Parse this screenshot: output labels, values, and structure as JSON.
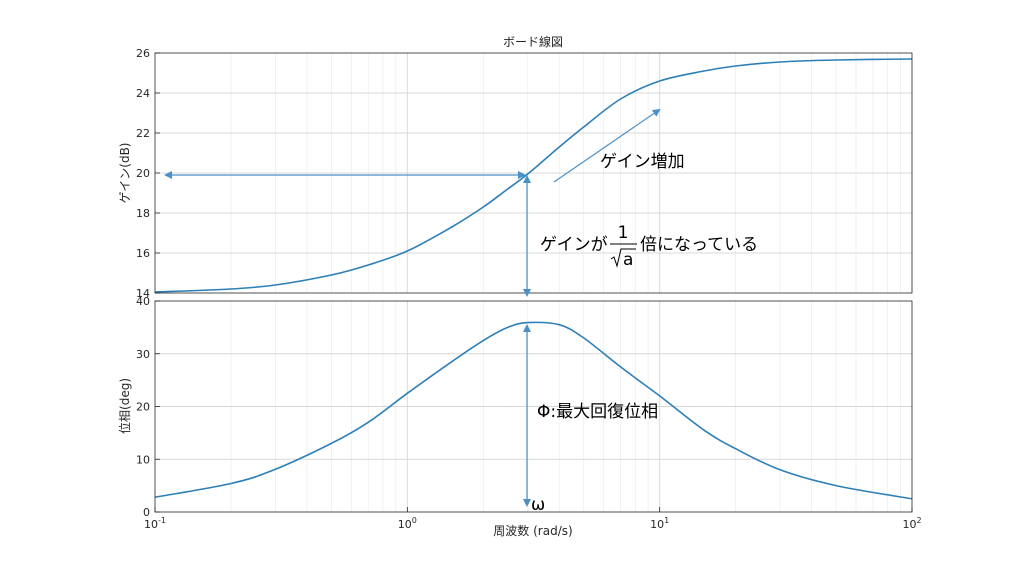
{
  "chart_data": [
    {
      "type": "line",
      "title": "ボード線図",
      "ylabel": "ゲイン(dB)",
      "xscale": "log",
      "xlim": [
        0.1,
        100
      ],
      "ylim": [
        14,
        26
      ],
      "yticks": [
        14,
        16,
        18,
        20,
        22,
        24,
        26
      ],
      "grid": true,
      "series": [
        {
          "color": "#2c7fb8",
          "x": [
            0.1,
            0.2,
            0.3,
            0.5,
            0.7,
            1,
            1.5,
            2,
            2.5,
            3,
            4,
            5,
            7,
            10,
            15,
            20,
            30,
            50,
            100
          ],
          "y": [
            14.05,
            14.2,
            14.4,
            14.9,
            15.4,
            16.1,
            17.3,
            18.3,
            19.2,
            19.95,
            21.3,
            22.3,
            23.7,
            24.6,
            25.1,
            25.35,
            25.55,
            25.65,
            25.7
          ]
        }
      ],
      "annotations": {
        "gain_increase": "ゲイン増加",
        "gain_ratio_prefix": "ゲインが",
        "gain_ratio_numerator": "1",
        "gain_ratio_denominator": "a",
        "gain_ratio_suffix": "倍になっている"
      }
    },
    {
      "type": "line",
      "xlabel": "周波数 (rad/s)",
      "ylabel": "位相(deg)",
      "xscale": "log",
      "xlim": [
        0.1,
        100
      ],
      "ylim": [
        0,
        40
      ],
      "yticks": [
        0,
        10,
        20,
        30,
        40
      ],
      "xticks": [
        0.1,
        1,
        10,
        100
      ],
      "xtick_labels": [
        {
          "base": "10",
          "exp": "-1"
        },
        {
          "base": "10",
          "exp": "0"
        },
        {
          "base": "10",
          "exp": "1"
        },
        {
          "base": "10",
          "exp": "2"
        }
      ],
      "grid": true,
      "series": [
        {
          "color": "#2c7fb8",
          "x": [
            0.1,
            0.2,
            0.3,
            0.5,
            0.7,
            1,
            1.5,
            2,
            2.5,
            3,
            4,
            5,
            7,
            10,
            15,
            20,
            30,
            50,
            100
          ],
          "y": [
            2.8,
            5.4,
            8.1,
            13.0,
            17.0,
            22.5,
            28.5,
            32.5,
            35.0,
            35.9,
            35.5,
            33.0,
            27.5,
            22.0,
            15.5,
            12.0,
            8.0,
            5.0,
            2.5
          ]
        }
      ],
      "annotations": {
        "phase_label": "Φ:最大回復位相",
        "omega_label": "ω"
      }
    }
  ]
}
